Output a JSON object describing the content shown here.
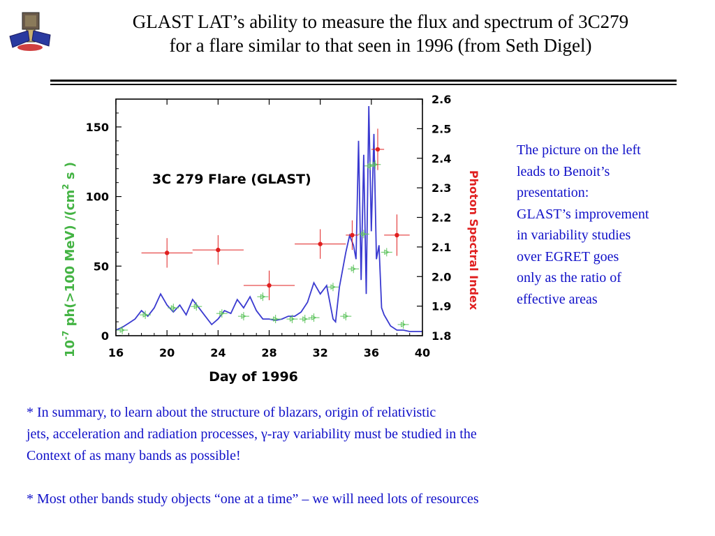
{
  "slide": {
    "title_line1": "GLAST LAT’s ability to measure the flux and spectrum of 3C279",
    "title_line2": "for a flare similar to that seen in 1996 (from Seth Digel)",
    "side_note": [
      "The picture on the left",
      "leads to Benoit’s",
      "presentation:",
      "GLAST’s improvement",
      "in variability studies",
      "over EGRET goes",
      "only as the ratio of",
      "effective areas"
    ],
    "summary_lines": [
      "* In summary, to learn about the structure of blazars, origin of relativistic",
      "jets, acceleration and radiation processes, γ-ray variability must be studied in the",
      "Context of as many bands as possible!"
    ],
    "note_line": "* Most other bands study objects “one at a time” – we will need lots of resources",
    "colors": {
      "text_blue": "#1010c8",
      "flux_line": "#3a3ad0",
      "flux_points": "#5ec45e",
      "index_points": "#e02020",
      "ylabel_green": "#43b343",
      "y2label_red": "#e02020"
    },
    "logo_icon": "satellite-icon"
  },
  "chart_data": {
    "type": "line",
    "annotation": "3C 279   Flare (GLAST)",
    "xlabel": "Day of 1996",
    "ylabel_prefix": "10",
    "ylabel_exp": "-7",
    "ylabel_main": "ph(>100  MeV)  /(cm",
    "ylabel_sup": "2",
    "ylabel_end": " s )",
    "y2label": "Photon   Spectral   Index",
    "xlim": [
      16,
      40
    ],
    "ylim": [
      0,
      170
    ],
    "y2lim": [
      1.8,
      2.6
    ],
    "x_ticks": [
      16,
      20,
      24,
      28,
      32,
      36,
      40
    ],
    "y_ticks": [
      0,
      50,
      100,
      150
    ],
    "y2_ticks": [
      "1.8",
      "1.9",
      "2.0",
      "2.1",
      "2.2",
      "2.3",
      "2.4",
      "2.5",
      "2.6"
    ],
    "series": [
      {
        "kind": "curve",
        "x": [
          16,
          16.5,
          17,
          17.5,
          18,
          18.5,
          19,
          19.5,
          20,
          20.5,
          21,
          21.5,
          22,
          22.5,
          23,
          23.5,
          24,
          24.5,
          25,
          25.5,
          26,
          26.5,
          27,
          27.5,
          28,
          28.5,
          29,
          29.5,
          30,
          30.5,
          31,
          31.5,
          32,
          32.5,
          33,
          33.2,
          33.5,
          34,
          34.3,
          34.6,
          34.8,
          35,
          35.2,
          35.4,
          35.6,
          35.8,
          36,
          36.2,
          36.4,
          36.6,
          36.8,
          37,
          37.5,
          38,
          38.5,
          39,
          39.5,
          40
        ],
        "y": [
          4,
          6,
          9,
          12,
          18,
          14,
          20,
          30,
          22,
          17,
          22,
          15,
          26,
          20,
          14,
          8,
          12,
          18,
          16,
          26,
          20,
          28,
          18,
          12,
          12,
          11,
          12,
          14,
          14,
          17,
          24,
          38,
          30,
          36,
          12,
          10,
          35,
          60,
          72,
          65,
          55,
          140,
          40,
          130,
          30,
          165,
          75,
          145,
          55,
          65,
          20,
          15,
          7,
          4,
          4,
          3,
          3,
          3
        ]
      },
      {
        "kind": "points",
        "x": [
          16.5,
          18.3,
          20.5,
          22.3,
          24.3,
          26,
          27.5,
          28.5,
          29.8,
          30.8,
          31.5,
          33,
          34,
          34.6,
          35.4,
          35.9,
          36.3,
          37.2,
          38.5
        ],
        "y": [
          4,
          15,
          20,
          21,
          16,
          14,
          28,
          12,
          12,
          12,
          13,
          35,
          14,
          48,
          73,
          122,
          123,
          60,
          8
        ]
      },
      {
        "kind": "error_points",
        "x": [
          20,
          24,
          28,
          32,
          34.5,
          36.5,
          38
        ],
        "y": [
          2.08,
          2.09,
          1.97,
          2.11,
          2.14,
          2.43,
          2.14
        ],
        "xerr": [
          2,
          2,
          2,
          2,
          0.5,
          0.5,
          1
        ],
        "yerr": [
          0.05,
          0.05,
          0.05,
          0.05,
          0.05,
          0.07,
          0.07
        ]
      }
    ]
  }
}
